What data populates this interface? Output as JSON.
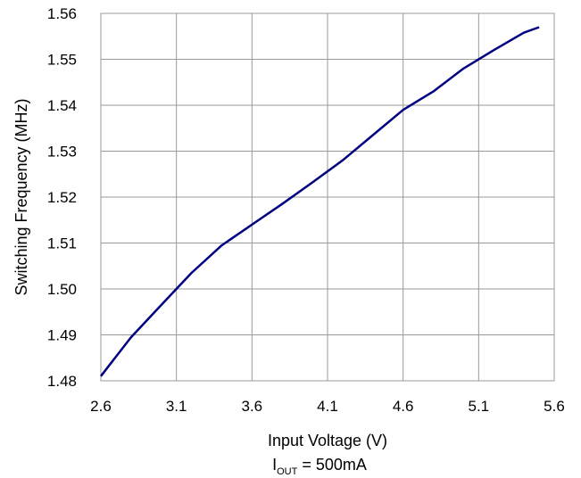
{
  "chart_data": {
    "type": "line",
    "xlabel": "Input Voltage (V)",
    "ylabel": "Switching Frequency (MHz)",
    "condition": {
      "prefix": "I",
      "subscript": "OUT",
      "suffix": " = 500mA"
    },
    "xlim": [
      2.6,
      5.6
    ],
    "ylim": [
      1.48,
      1.56
    ],
    "xticks": [
      "2.6",
      "3.1",
      "3.6",
      "4.1",
      "4.6",
      "5.1",
      "5.6"
    ],
    "yticks": [
      "1.48",
      "1.49",
      "1.50",
      "1.51",
      "1.52",
      "1.53",
      "1.54",
      "1.55",
      "1.56"
    ],
    "grid": true,
    "series_color": "#000080",
    "x": [
      2.6,
      2.8,
      3.0,
      3.2,
      3.4,
      3.6,
      3.8,
      4.0,
      4.2,
      4.4,
      4.6,
      4.8,
      5.0,
      5.2,
      5.4,
      5.5
    ],
    "y": [
      1.481,
      1.4895,
      1.4965,
      1.5035,
      1.5095,
      1.514,
      1.5185,
      1.5232,
      1.528,
      1.5335,
      1.539,
      1.543,
      1.548,
      1.552,
      1.5558,
      1.557
    ]
  }
}
